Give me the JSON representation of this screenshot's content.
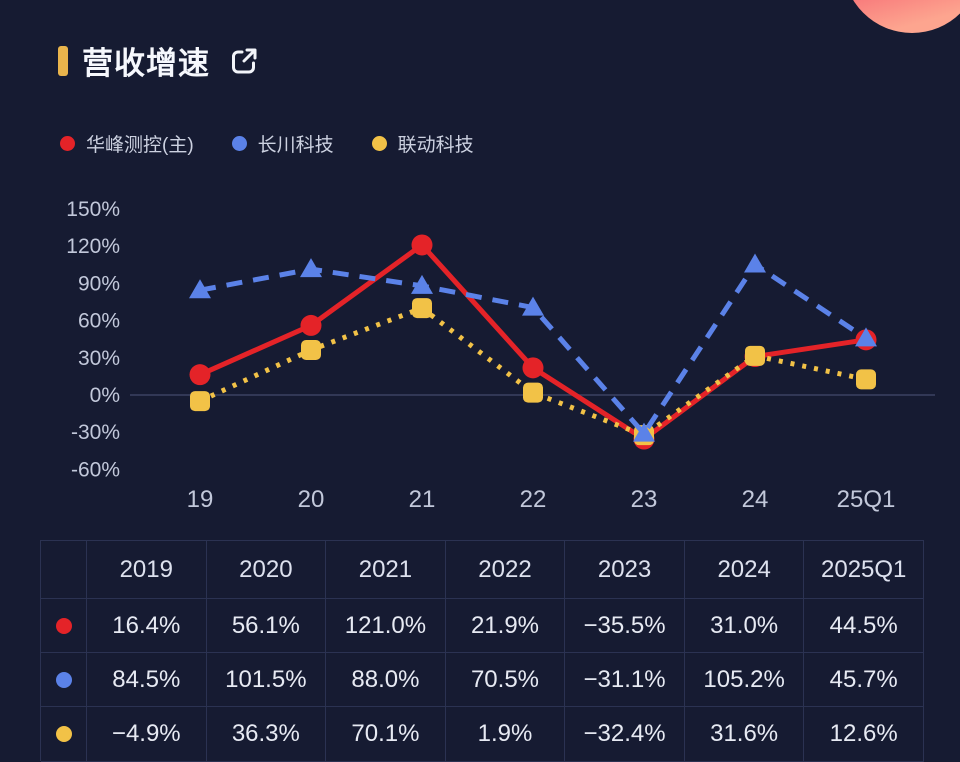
{
  "title": {
    "text": "营收增速"
  },
  "colors": {
    "background": "#161b32",
    "accent_bar": "#e9b44c",
    "zero_line": "#3c4363",
    "axis_text": "#c2c8da",
    "table_border": "#2b3252",
    "series_red": "#e42328",
    "series_blue": "#5b82e8",
    "series_yellow": "#f2c247"
  },
  "legend": [
    {
      "label": "华峰测控(主)",
      "color": "#e42328"
    },
    {
      "label": "长川科技",
      "color": "#5b82e8"
    },
    {
      "label": "联动科技",
      "color": "#f2c247"
    }
  ],
  "chart_data": {
    "type": "line",
    "title": "营收增速",
    "x": [
      "19",
      "20",
      "21",
      "22",
      "23",
      "24",
      "25Q1"
    ],
    "series": [
      {
        "name": "华峰测控(主)",
        "color": "#e42328",
        "line_style": "solid",
        "marker": "circle",
        "values": [
          16.4,
          56.1,
          121.0,
          21.9,
          -35.5,
          31.0,
          44.5
        ]
      },
      {
        "name": "长川科技",
        "color": "#5b82e8",
        "line_style": "dashed",
        "marker": "triangle",
        "values": [
          84.5,
          101.5,
          88.0,
          70.5,
          -31.1,
          105.2,
          45.7
        ]
      },
      {
        "name": "联动科技",
        "color": "#f2c247",
        "line_style": "dotted",
        "marker": "square",
        "values": [
          -4.9,
          36.3,
          70.1,
          1.9,
          -32.4,
          31.6,
          12.6
        ]
      }
    ],
    "xlabel": "",
    "ylabel": "",
    "ylim": [
      -60,
      150
    ],
    "yticks": [
      150,
      120,
      90,
      60,
      30,
      0,
      -30,
      -60
    ],
    "ytick_suffix": "%",
    "grid": "zero-line-only",
    "legend_position": "top-left"
  },
  "table": {
    "headers": [
      "",
      "2019",
      "2020",
      "2021",
      "2022",
      "2023",
      "2024",
      "2025Q1"
    ],
    "rows": [
      {
        "series": "华峰测控(主)",
        "dot_color": "#e42328",
        "values": [
          "16.4%",
          "56.1%",
          "121.0%",
          "21.9%",
          "−35.5%",
          "31.0%",
          "44.5%"
        ]
      },
      {
        "series": "长川科技",
        "dot_color": "#5b82e8",
        "values": [
          "84.5%",
          "101.5%",
          "88.0%",
          "70.5%",
          "−31.1%",
          "105.2%",
          "45.7%"
        ]
      },
      {
        "series": "联动科技",
        "dot_color": "#f2c247",
        "values": [
          "−4.9%",
          "36.3%",
          "70.1%",
          "1.9%",
          "−32.4%",
          "31.6%",
          "12.6%"
        ]
      }
    ]
  }
}
